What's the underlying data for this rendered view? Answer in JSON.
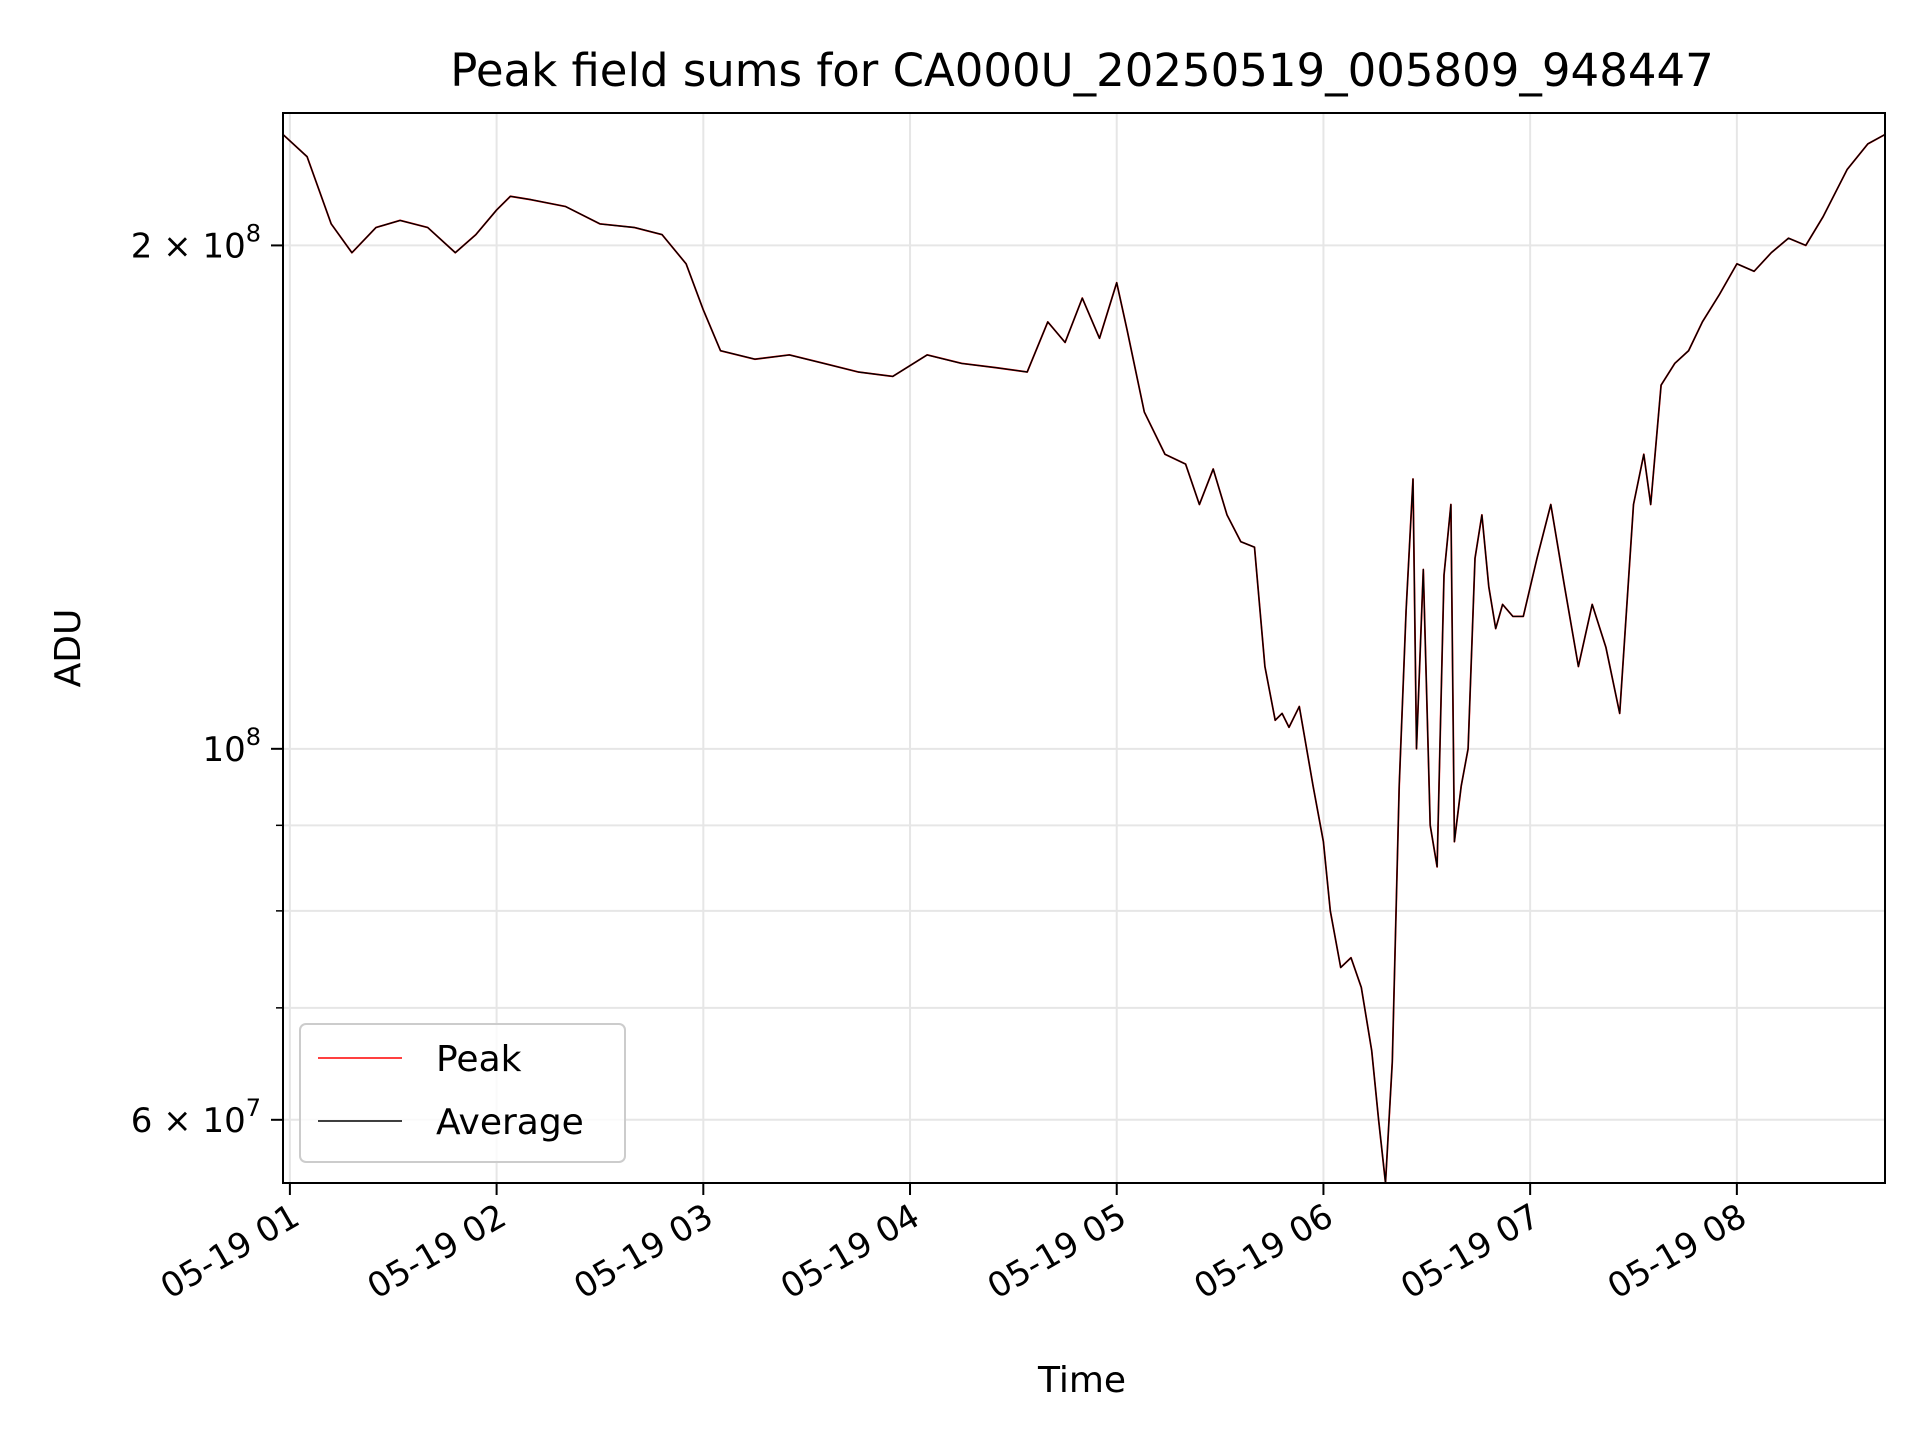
{
  "colors": {
    "peak": "#ff0000",
    "average": "#000000",
    "grid": "#e6e6e6",
    "axis": "#000000"
  },
  "chart_data": {
    "type": "line",
    "title": "Peak field sums for CA000U_20250519_005809_948447",
    "xlabel": "Time",
    "ylabel": "ADU",
    "y_scale": "log",
    "ylim": [
      55000000,
      240000000
    ],
    "xlim": [
      "2025-05-19 00:58",
      "2025-05-19 08:43"
    ],
    "x_ticks": [
      {
        "t": "2025-05-19 01:00",
        "label": "05-19 01"
      },
      {
        "t": "2025-05-19 02:00",
        "label": "05-19 02"
      },
      {
        "t": "2025-05-19 03:00",
        "label": "05-19 03"
      },
      {
        "t": "2025-05-19 04:00",
        "label": "05-19 04"
      },
      {
        "t": "2025-05-19 05:00",
        "label": "05-19 05"
      },
      {
        "t": "2025-05-19 06:00",
        "label": "05-19 06"
      },
      {
        "t": "2025-05-19 07:00",
        "label": "05-19 07"
      },
      {
        "t": "2025-05-19 08:00",
        "label": "05-19 08"
      }
    ],
    "y_major_ticks": [
      {
        "v": 60000000,
        "base": "6 × 10",
        "exp": "7"
      },
      {
        "v": 100000000,
        "base": "10",
        "exp": "8"
      },
      {
        "v": 200000000,
        "base": "2 × 10",
        "exp": "8"
      }
    ],
    "y_minor_ticks": [
      70000000,
      80000000,
      90000000
    ],
    "grid": true,
    "legend_position": "lower-left",
    "series": [
      {
        "name": "Peak",
        "color": "#ff0000",
        "x": [
          "2025-05-19 00:58",
          "2025-05-19 01:05",
          "2025-05-19 01:12",
          "2025-05-19 01:18",
          "2025-05-19 01:25",
          "2025-05-19 01:32",
          "2025-05-19 01:40",
          "2025-05-19 01:48",
          "2025-05-19 01:54",
          "2025-05-19 02:00",
          "2025-05-19 02:04",
          "2025-05-19 02:10",
          "2025-05-19 02:20",
          "2025-05-19 02:30",
          "2025-05-19 02:40",
          "2025-05-19 02:48",
          "2025-05-19 02:55",
          "2025-05-19 03:00",
          "2025-05-19 03:05",
          "2025-05-19 03:15",
          "2025-05-19 03:25",
          "2025-05-19 03:35",
          "2025-05-19 03:45",
          "2025-05-19 03:55",
          "2025-05-19 04:05",
          "2025-05-19 04:15",
          "2025-05-19 04:25",
          "2025-05-19 04:34",
          "2025-05-19 04:40",
          "2025-05-19 04:45",
          "2025-05-19 04:50",
          "2025-05-19 04:55",
          "2025-05-19 05:00",
          "2025-05-19 05:03",
          "2025-05-19 05:08",
          "2025-05-19 05:14",
          "2025-05-19 05:20",
          "2025-05-19 05:24",
          "2025-05-19 05:28",
          "2025-05-19 05:32",
          "2025-05-19 05:36",
          "2025-05-19 05:40",
          "2025-05-19 05:43",
          "2025-05-19 05:46",
          "2025-05-19 05:48",
          "2025-05-19 05:50",
          "2025-05-19 05:53",
          "2025-05-19 05:57",
          "2025-05-19 06:00",
          "2025-05-19 06:02",
          "2025-05-19 06:05",
          "2025-05-19 06:08",
          "2025-05-19 06:11",
          "2025-05-19 06:14",
          "2025-05-19 06:16",
          "2025-05-19 06:18",
          "2025-05-19 06:20",
          "2025-05-19 06:22",
          "2025-05-19 06:24",
          "2025-05-19 06:26",
          "2025-05-19 06:27",
          "2025-05-19 06:29",
          "2025-05-19 06:31",
          "2025-05-19 06:33",
          "2025-05-19 06:35",
          "2025-05-19 06:37",
          "2025-05-19 06:38",
          "2025-05-19 06:40",
          "2025-05-19 06:42",
          "2025-05-19 06:44",
          "2025-05-19 06:46",
          "2025-05-19 06:48",
          "2025-05-19 06:50",
          "2025-05-19 06:52",
          "2025-05-19 06:55",
          "2025-05-19 06:58",
          "2025-05-19 07:02",
          "2025-05-19 07:06",
          "2025-05-19 07:10",
          "2025-05-19 07:14",
          "2025-05-19 07:18",
          "2025-05-19 07:22",
          "2025-05-19 07:26",
          "2025-05-19 07:30",
          "2025-05-19 07:33",
          "2025-05-19 07:35",
          "2025-05-19 07:38",
          "2025-05-19 07:42",
          "2025-05-19 07:46",
          "2025-05-19 07:50",
          "2025-05-19 07:55",
          "2025-05-19 08:00",
          "2025-05-19 08:05",
          "2025-05-19 08:10",
          "2025-05-19 08:15",
          "2025-05-19 08:20",
          "2025-05-19 08:25",
          "2025-05-19 08:32",
          "2025-05-19 08:38",
          "2025-05-19 08:43"
        ],
        "values": [
          233000000,
          226000000,
          206000000,
          198000000,
          205000000,
          207000000,
          205000000,
          198000000,
          203000000,
          210000000,
          214000000,
          213000000,
          211000000,
          206000000,
          205000000,
          203000000,
          195000000,
          183000000,
          173000000,
          171000000,
          172000000,
          170000000,
          168000000,
          167000000,
          172000000,
          170000000,
          169000000,
          168000000,
          180000000,
          175000000,
          186000000,
          176000000,
          190000000,
          178000000,
          159000000,
          150000000,
          148000000,
          140000000,
          147000000,
          138000000,
          133000000,
          132000000,
          112000000,
          104000000,
          105000000,
          103000000,
          106000000,
          95000000,
          88000000,
          80000000,
          74000000,
          75000000,
          72000000,
          66000000,
          60000000,
          55000000,
          65000000,
          95000000,
          121000000,
          145000000,
          100000000,
          128000000,
          90000000,
          85000000,
          127000000,
          140000000,
          88000000,
          95000000,
          100000000,
          130000000,
          138000000,
          125000000,
          118000000,
          122000000,
          120000000,
          120000000,
          130000000,
          140000000,
          125000000,
          112000000,
          122000000,
          115000000,
          105000000,
          140000000,
          150000000,
          140000000,
          165000000,
          170000000,
          173000000,
          180000000,
          187000000,
          195000000,
          193000000,
          198000000,
          202000000,
          200000000,
          208000000,
          222000000,
          230000000,
          233000000
        ]
      },
      {
        "name": "Average",
        "color": "#000000",
        "x": [
          "2025-05-19 00:58",
          "2025-05-19 01:05",
          "2025-05-19 01:12",
          "2025-05-19 01:18",
          "2025-05-19 01:25",
          "2025-05-19 01:32",
          "2025-05-19 01:40",
          "2025-05-19 01:48",
          "2025-05-19 01:54",
          "2025-05-19 02:00",
          "2025-05-19 02:04",
          "2025-05-19 02:10",
          "2025-05-19 02:20",
          "2025-05-19 02:30",
          "2025-05-19 02:40",
          "2025-05-19 02:48",
          "2025-05-19 02:55",
          "2025-05-19 03:00",
          "2025-05-19 03:05",
          "2025-05-19 03:15",
          "2025-05-19 03:25",
          "2025-05-19 03:35",
          "2025-05-19 03:45",
          "2025-05-19 03:55",
          "2025-05-19 04:05",
          "2025-05-19 04:15",
          "2025-05-19 04:25",
          "2025-05-19 04:34",
          "2025-05-19 04:40",
          "2025-05-19 04:45",
          "2025-05-19 04:50",
          "2025-05-19 04:55",
          "2025-05-19 05:00",
          "2025-05-19 05:03",
          "2025-05-19 05:08",
          "2025-05-19 05:14",
          "2025-05-19 05:20",
          "2025-05-19 05:24",
          "2025-05-19 05:28",
          "2025-05-19 05:32",
          "2025-05-19 05:36",
          "2025-05-19 05:40",
          "2025-05-19 05:43",
          "2025-05-19 05:46",
          "2025-05-19 05:48",
          "2025-05-19 05:50",
          "2025-05-19 05:53",
          "2025-05-19 05:57",
          "2025-05-19 06:00",
          "2025-05-19 06:02",
          "2025-05-19 06:05",
          "2025-05-19 06:08",
          "2025-05-19 06:11",
          "2025-05-19 06:14",
          "2025-05-19 06:16",
          "2025-05-19 06:18",
          "2025-05-19 06:20",
          "2025-05-19 06:22",
          "2025-05-19 06:24",
          "2025-05-19 06:26",
          "2025-05-19 06:27",
          "2025-05-19 06:29",
          "2025-05-19 06:31",
          "2025-05-19 06:33",
          "2025-05-19 06:35",
          "2025-05-19 06:37",
          "2025-05-19 06:38",
          "2025-05-19 06:40",
          "2025-05-19 06:42",
          "2025-05-19 06:44",
          "2025-05-19 06:46",
          "2025-05-19 06:48",
          "2025-05-19 06:50",
          "2025-05-19 06:52",
          "2025-05-19 06:55",
          "2025-05-19 06:58",
          "2025-05-19 07:02",
          "2025-05-19 07:06",
          "2025-05-19 07:10",
          "2025-05-19 07:14",
          "2025-05-19 07:18",
          "2025-05-19 07:22",
          "2025-05-19 07:26",
          "2025-05-19 07:30",
          "2025-05-19 07:33",
          "2025-05-19 07:35",
          "2025-05-19 07:38",
          "2025-05-19 07:42",
          "2025-05-19 07:46",
          "2025-05-19 07:50",
          "2025-05-19 07:55",
          "2025-05-19 08:00",
          "2025-05-19 08:05",
          "2025-05-19 08:10",
          "2025-05-19 08:15",
          "2025-05-19 08:20",
          "2025-05-19 08:25",
          "2025-05-19 08:32",
          "2025-05-19 08:38",
          "2025-05-19 08:43"
        ],
        "values": [
          233000000,
          226000000,
          206000000,
          198000000,
          205000000,
          207000000,
          205000000,
          198000000,
          203000000,
          210000000,
          214000000,
          213000000,
          211000000,
          206000000,
          205000000,
          203000000,
          195000000,
          183000000,
          173000000,
          171000000,
          172000000,
          170000000,
          168000000,
          167000000,
          172000000,
          170000000,
          169000000,
          168000000,
          180000000,
          175000000,
          186000000,
          176000000,
          190000000,
          178000000,
          159000000,
          150000000,
          148000000,
          140000000,
          147000000,
          138000000,
          133000000,
          132000000,
          112000000,
          104000000,
          105000000,
          103000000,
          106000000,
          95000000,
          88000000,
          80000000,
          74000000,
          75000000,
          72000000,
          66000000,
          60000000,
          55000000,
          65000000,
          95000000,
          121000000,
          145000000,
          100000000,
          128000000,
          90000000,
          85000000,
          127000000,
          140000000,
          88000000,
          95000000,
          100000000,
          130000000,
          138000000,
          125000000,
          118000000,
          122000000,
          120000000,
          120000000,
          130000000,
          140000000,
          125000000,
          112000000,
          122000000,
          115000000,
          105000000,
          140000000,
          150000000,
          140000000,
          165000000,
          170000000,
          173000000,
          180000000,
          187000000,
          195000000,
          193000000,
          198000000,
          202000000,
          200000000,
          208000000,
          222000000,
          230000000,
          233000000
        ]
      }
    ]
  }
}
